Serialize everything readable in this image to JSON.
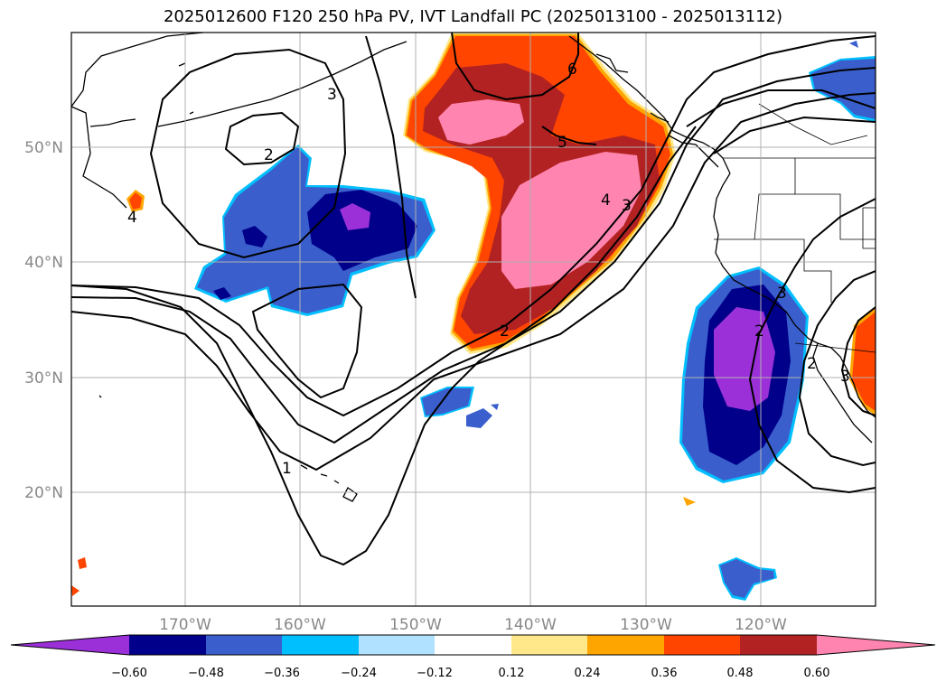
{
  "title": "2025012600 F120 250 hPa PV, IVT Landfall PC (2025013100 - 2025013112)",
  "lat_labels": [
    "50°N",
    "40°N",
    "30°N",
    "20°N"
  ],
  "lon_labels": [
    "170°W",
    "160°W",
    "150°W",
    "140°W",
    "130°W",
    "120°W"
  ],
  "colorbar": {
    "colors": [
      "#9b30d8",
      "#00008b",
      "#3a5fcd",
      "#00bfff",
      "#b0e2ff",
      "#ffffff",
      "#ffe88a",
      "#ffa500",
      "#ff4500",
      "#b22222",
      "#ff85b0"
    ],
    "ticks": [
      "−0.60",
      "−0.48",
      "−0.36",
      "−0.24",
      "−0.12",
      "0.12",
      "0.24",
      "0.36",
      "0.48",
      "0.60"
    ]
  },
  "contour_labels": [
    "3",
    "2",
    "4",
    "6",
    "5",
    "4",
    "3",
    "2",
    "1",
    "2",
    "3",
    "2",
    "3"
  ]
}
